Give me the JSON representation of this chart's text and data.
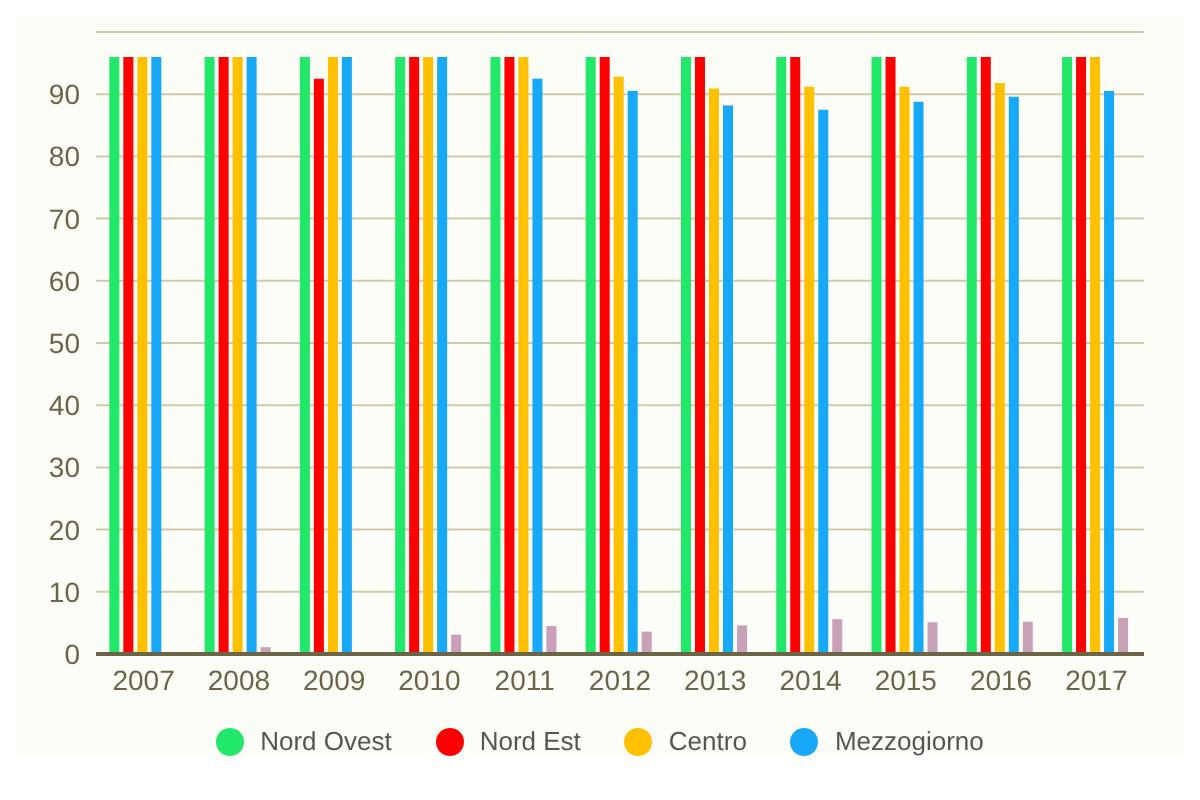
{
  "chart_data": {
    "type": "bar",
    "categories": [
      "2007",
      "2008",
      "2009",
      "2010",
      "2011",
      "2012",
      "2013",
      "2014",
      "2015",
      "2016",
      "2017"
    ],
    "series": [
      {
        "name": "Nord Ovest",
        "color": "#22e86a",
        "values": [
          96,
          96,
          96,
          96,
          96,
          96,
          96,
          96,
          96,
          96,
          96
        ]
      },
      {
        "name": "Nord Est",
        "color": "#ff0000",
        "values": [
          96,
          96,
          92.5,
          96,
          96,
          96,
          96,
          96,
          96,
          96,
          96
        ]
      },
      {
        "name": "Centro",
        "color": "#ffc000",
        "values": [
          96,
          96,
          96,
          96,
          96,
          92.8,
          90.9,
          91.2,
          91.2,
          91.8,
          96
        ]
      },
      {
        "name": "Mezzogiorno",
        "color": "#18a8f8",
        "values": [
          96,
          96,
          96,
          96,
          92.5,
          90.5,
          88.2,
          87.5,
          88.8,
          89.6,
          90.5
        ]
      },
      {
        "color": "#c8a0b8",
        "values": [
          null,
          1.1,
          null,
          3.1,
          4.5,
          3.6,
          4.6,
          5.6,
          5.1,
          5.2,
          5.8
        ]
      }
    ],
    "ylim": [
      0,
      100
    ],
    "yticks": [
      0,
      10,
      20,
      30,
      40,
      50,
      60,
      70,
      80,
      90
    ],
    "grid": "y",
    "legend": "bottom"
  }
}
